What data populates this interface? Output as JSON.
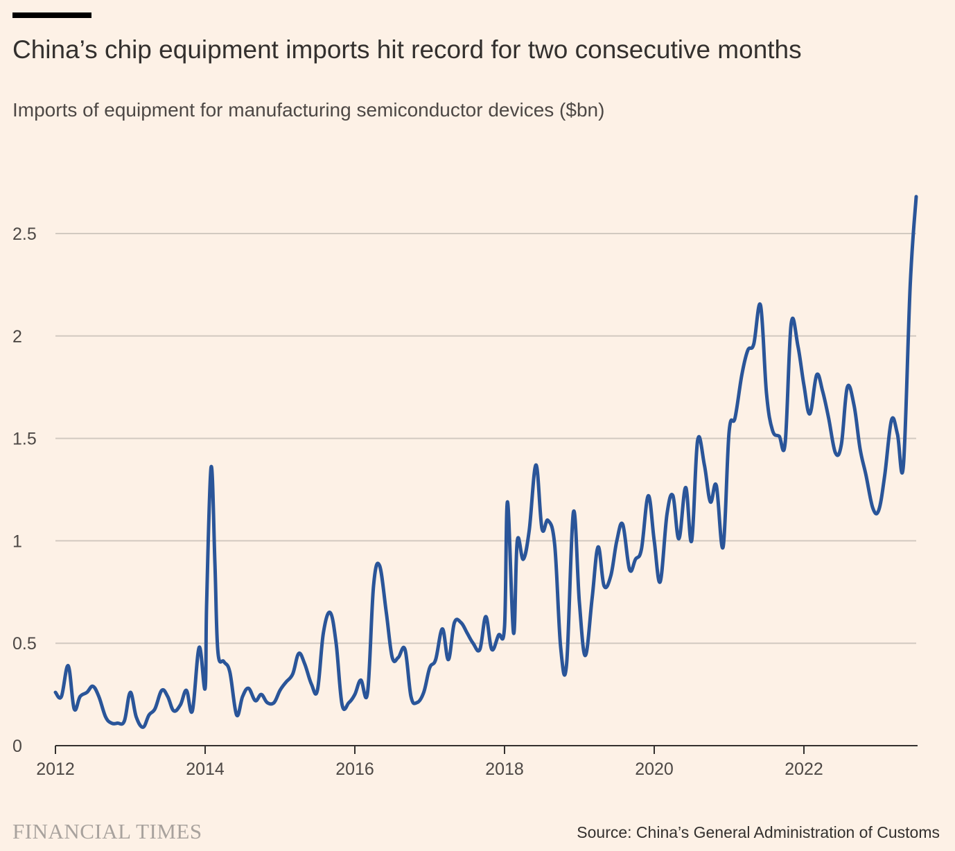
{
  "header": {
    "title": "China’s chip equipment imports hit record for two consecutive months",
    "subtitle": "Imports of equipment for manufacturing semiconductor devices ($bn)"
  },
  "footer": {
    "brand": "FINANCIAL TIMES",
    "source": "Source: China’s General Administration of Customs"
  },
  "chart_data": {
    "type": "line",
    "title": "China’s chip equipment imports hit record for two consecutive months",
    "subtitle": "Imports of equipment for manufacturing semiconductor devices ($bn)",
    "xlabel": "",
    "ylabel": "",
    "xlim": [
      2012.0,
      2023.5
    ],
    "ylim": [
      0,
      2.7
    ],
    "grid": true,
    "legend": "none",
    "x_ticks": [
      "2012",
      "2014",
      "2016",
      "2018",
      "2020",
      "2022"
    ],
    "y_ticks": [
      "0",
      "0.5",
      "1",
      "1.5",
      "2",
      "2.5"
    ],
    "series": [
      {
        "name": "",
        "color": "#2a5599",
        "points": [
          [
            2012.0,
            0.26
          ],
          [
            2012.08,
            0.24
          ],
          [
            2012.17,
            0.39
          ],
          [
            2012.25,
            0.18
          ],
          [
            2012.33,
            0.24
          ],
          [
            2012.42,
            0.26
          ],
          [
            2012.5,
            0.29
          ],
          [
            2012.58,
            0.24
          ],
          [
            2012.67,
            0.14
          ],
          [
            2012.75,
            0.11
          ],
          [
            2012.83,
            0.11
          ],
          [
            2012.92,
            0.12
          ],
          [
            2013.0,
            0.26
          ],
          [
            2013.08,
            0.14
          ],
          [
            2013.17,
            0.09
          ],
          [
            2013.25,
            0.15
          ],
          [
            2013.33,
            0.18
          ],
          [
            2013.42,
            0.27
          ],
          [
            2013.5,
            0.24
          ],
          [
            2013.58,
            0.17
          ],
          [
            2013.67,
            0.2
          ],
          [
            2013.75,
            0.27
          ],
          [
            2013.83,
            0.17
          ],
          [
            2013.92,
            0.48
          ],
          [
            2014.0,
            0.28
          ],
          [
            2014.02,
            0.7
          ],
          [
            2014.08,
            1.36
          ],
          [
            2014.13,
            0.9
          ],
          [
            2014.17,
            0.46
          ],
          [
            2014.25,
            0.41
          ],
          [
            2014.33,
            0.36
          ],
          [
            2014.42,
            0.15
          ],
          [
            2014.5,
            0.24
          ],
          [
            2014.58,
            0.28
          ],
          [
            2014.67,
            0.22
          ],
          [
            2014.75,
            0.25
          ],
          [
            2014.83,
            0.21
          ],
          [
            2014.92,
            0.21
          ],
          [
            2015.0,
            0.27
          ],
          [
            2015.08,
            0.31
          ],
          [
            2015.17,
            0.35
          ],
          [
            2015.25,
            0.45
          ],
          [
            2015.33,
            0.4
          ],
          [
            2015.42,
            0.3
          ],
          [
            2015.5,
            0.27
          ],
          [
            2015.58,
            0.55
          ],
          [
            2015.67,
            0.65
          ],
          [
            2015.75,
            0.5
          ],
          [
            2015.83,
            0.2
          ],
          [
            2015.92,
            0.21
          ],
          [
            2016.0,
            0.25
          ],
          [
            2016.08,
            0.32
          ],
          [
            2016.17,
            0.26
          ],
          [
            2016.25,
            0.78
          ],
          [
            2016.33,
            0.88
          ],
          [
            2016.42,
            0.65
          ],
          [
            2016.5,
            0.43
          ],
          [
            2016.58,
            0.43
          ],
          [
            2016.67,
            0.47
          ],
          [
            2016.75,
            0.24
          ],
          [
            2016.83,
            0.21
          ],
          [
            2016.92,
            0.26
          ],
          [
            2017.0,
            0.38
          ],
          [
            2017.08,
            0.42
          ],
          [
            2017.17,
            0.57
          ],
          [
            2017.25,
            0.42
          ],
          [
            2017.33,
            0.6
          ],
          [
            2017.42,
            0.6
          ],
          [
            2017.5,
            0.55
          ],
          [
            2017.58,
            0.5
          ],
          [
            2017.67,
            0.47
          ],
          [
            2017.75,
            0.63
          ],
          [
            2017.83,
            0.47
          ],
          [
            2017.92,
            0.54
          ],
          [
            2018.0,
            0.58
          ],
          [
            2018.04,
            1.19
          ],
          [
            2018.12,
            0.55
          ],
          [
            2018.17,
            1.0
          ],
          [
            2018.25,
            0.91
          ],
          [
            2018.33,
            1.05
          ],
          [
            2018.42,
            1.37
          ],
          [
            2018.5,
            1.06
          ],
          [
            2018.58,
            1.1
          ],
          [
            2018.67,
            0.98
          ],
          [
            2018.75,
            0.48
          ],
          [
            2018.83,
            0.4
          ],
          [
            2018.92,
            1.14
          ],
          [
            2019.0,
            0.7
          ],
          [
            2019.08,
            0.44
          ],
          [
            2019.17,
            0.72
          ],
          [
            2019.25,
            0.97
          ],
          [
            2019.33,
            0.78
          ],
          [
            2019.42,
            0.83
          ],
          [
            2019.5,
            1.0
          ],
          [
            2019.58,
            1.08
          ],
          [
            2019.67,
            0.86
          ],
          [
            2019.75,
            0.91
          ],
          [
            2019.83,
            0.96
          ],
          [
            2019.92,
            1.22
          ],
          [
            2020.0,
            1.0
          ],
          [
            2020.08,
            0.8
          ],
          [
            2020.17,
            1.13
          ],
          [
            2020.25,
            1.22
          ],
          [
            2020.33,
            1.01
          ],
          [
            2020.42,
            1.26
          ],
          [
            2020.5,
            1.0
          ],
          [
            2020.58,
            1.49
          ],
          [
            2020.67,
            1.37
          ],
          [
            2020.75,
            1.19
          ],
          [
            2020.83,
            1.27
          ],
          [
            2020.92,
            0.97
          ],
          [
            2021.0,
            1.53
          ],
          [
            2021.08,
            1.6
          ],
          [
            2021.17,
            1.81
          ],
          [
            2021.25,
            1.93
          ],
          [
            2021.33,
            1.96
          ],
          [
            2021.42,
            2.15
          ],
          [
            2021.5,
            1.72
          ],
          [
            2021.58,
            1.54
          ],
          [
            2021.67,
            1.51
          ],
          [
            2021.75,
            1.48
          ],
          [
            2021.83,
            2.06
          ],
          [
            2021.92,
            1.95
          ],
          [
            2022.0,
            1.76
          ],
          [
            2022.08,
            1.62
          ],
          [
            2022.17,
            1.81
          ],
          [
            2022.25,
            1.73
          ],
          [
            2022.33,
            1.6
          ],
          [
            2022.42,
            1.43
          ],
          [
            2022.5,
            1.47
          ],
          [
            2022.58,
            1.75
          ],
          [
            2022.67,
            1.66
          ],
          [
            2022.75,
            1.45
          ],
          [
            2022.83,
            1.32
          ],
          [
            2022.92,
            1.16
          ],
          [
            2023.0,
            1.15
          ],
          [
            2023.08,
            1.32
          ],
          [
            2023.17,
            1.59
          ],
          [
            2023.25,
            1.52
          ],
          [
            2023.33,
            1.37
          ],
          [
            2023.42,
            2.25
          ],
          [
            2023.5,
            2.68
          ]
        ]
      }
    ]
  }
}
